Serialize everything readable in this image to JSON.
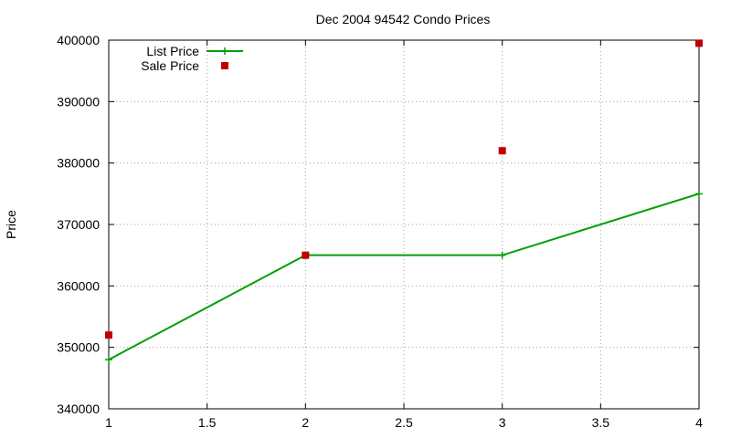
{
  "chart_data": {
    "type": "line",
    "title": "Dec 2004 94542 Condo Prices",
    "xlabel": "",
    "ylabel": "Price",
    "xlim": [
      1,
      4
    ],
    "ylim": [
      340000,
      400000
    ],
    "xticks": [
      "1",
      "1.5",
      "2",
      "2.5",
      "3",
      "3.5",
      "4"
    ],
    "yticks": [
      "340000",
      "350000",
      "360000",
      "370000",
      "380000",
      "390000",
      "400000"
    ],
    "grid": true,
    "legend_position": "top-left",
    "series": [
      {
        "name": "List Price",
        "style": "linespoints",
        "marker": "plus",
        "color": "#00a000",
        "x": [
          1,
          2,
          3,
          4
        ],
        "y": [
          348000,
          365000,
          365000,
          375000
        ]
      },
      {
        "name": "Sale Price",
        "style": "points",
        "marker": "square",
        "color": "#c00000",
        "x": [
          1,
          2,
          3,
          4
        ],
        "y": [
          352000,
          365000,
          382000,
          399500
        ]
      }
    ]
  }
}
